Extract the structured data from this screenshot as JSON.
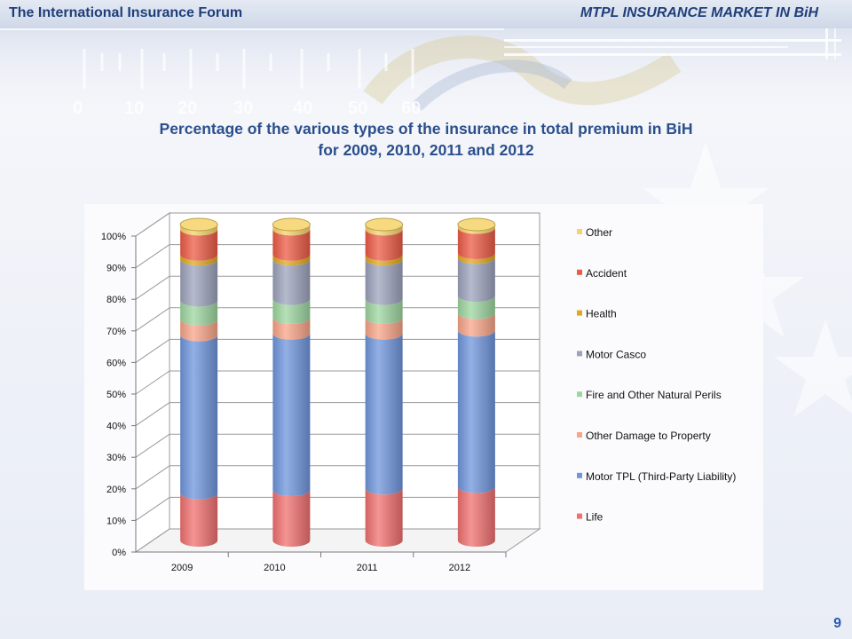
{
  "header": {
    "left_title": "The International Insurance Forum",
    "right_title": "MTPL INSURANCE MARKET IN BiH"
  },
  "background": {
    "ruler_labels": [
      "0",
      "10",
      "20",
      "30",
      "40",
      "50",
      "60"
    ]
  },
  "page_number": "9",
  "colors": {
    "header_text": "#1f3f7a",
    "title_text": "#2a4f8c",
    "series": {
      "Life": "#f0706f",
      "Motor TPL (Third-Party Liability)": "#6f96dc",
      "Other Damage to Property": "#f8a488",
      "Fire and Other Natural Perils": "#9ed6a0",
      "Motor Casco": "#9ea3bc",
      "Health": "#e0a81c",
      "Accident": "#ec5b45",
      "Other": "#f6d36a"
    }
  },
  "chart_data": {
    "type": "bar",
    "stacked": true,
    "style": "3d-cylinder",
    "title_lines": [
      "Percentage of the various types of the insurance in total premium in BiH",
      "for 2009, 2010, 2011 and 2012"
    ],
    "categories": [
      "2009",
      "2010",
      "2011",
      "2012"
    ],
    "y_ticks": [
      "0%",
      "10%",
      "20%",
      "30%",
      "40%",
      "50%",
      "60%",
      "70%",
      "80%",
      "90%",
      "100%"
    ],
    "ylim": [
      0,
      100
    ],
    "grid": true,
    "legend_position": "right",
    "series": [
      {
        "name": "Life",
        "values": [
          15,
          16,
          16.5,
          17
        ]
      },
      {
        "name": "Motor TPL (Third-Party Liability)",
        "values": [
          50,
          49.5,
          49,
          49.5
        ]
      },
      {
        "name": "Other Damage to Property",
        "values": [
          5,
          5,
          5,
          5.5
        ]
      },
      {
        "name": "Fire and Other Natural Perils",
        "values": [
          6,
          6,
          6,
          5.5
        ]
      },
      {
        "name": "Motor Casco",
        "values": [
          13,
          12.5,
          12.5,
          12
        ]
      },
      {
        "name": "Health",
        "values": [
          1.5,
          1.5,
          1.5,
          1.5
        ]
      },
      {
        "name": "Accident",
        "values": [
          8,
          8,
          8,
          8
        ]
      },
      {
        "name": "Other",
        "values": [
          1.5,
          1.5,
          1.5,
          1
        ]
      }
    ],
    "legend_order": [
      "Other",
      "Accident",
      "Health",
      "Motor Casco",
      "Fire and Other Natural Perils",
      "Other Damage to Property",
      "Motor TPL (Third-Party Liability)",
      "Life"
    ]
  }
}
